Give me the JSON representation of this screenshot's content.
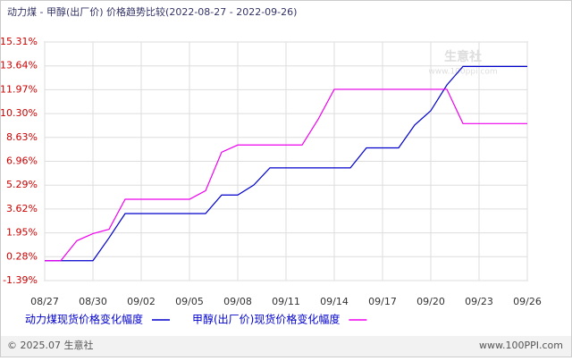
{
  "chart_data": {
    "type": "line",
    "title": "动力煤 - 甲醇(出厂价) 价格趋势比较(2022-08-27 - 2022-09-26)",
    "categories": [
      "08/27",
      null,
      null,
      "08/30",
      null,
      null,
      "09/02",
      null,
      null,
      "09/05",
      null,
      null,
      "09/08",
      null,
      null,
      "09/11",
      null,
      null,
      "09/14",
      null,
      null,
      "09/17",
      null,
      null,
      "09/20",
      null,
      null,
      "09/23",
      null,
      null,
      "09/26"
    ],
    "series": [
      {
        "name": "动力煤现货价格变化幅度",
        "color": "#0000cc",
        "values": [
          0,
          0,
          0,
          0,
          1.6,
          3.3,
          3.3,
          3.3,
          3.3,
          3.3,
          3.3,
          4.6,
          4.6,
          5.3,
          6.5,
          6.5,
          6.5,
          6.5,
          6.5,
          6.5,
          7.9,
          7.9,
          7.9,
          9.5,
          10.5,
          12.3,
          13.6,
          13.6,
          13.6,
          13.6,
          13.6
        ]
      },
      {
        "name": "甲醇(出厂价)现货价格变化幅度",
        "color": "#ee00ee",
        "values": [
          0,
          0,
          1.4,
          1.9,
          2.2,
          4.3,
          4.3,
          4.3,
          4.3,
          4.3,
          4.9,
          7.6,
          8.1,
          8.1,
          8.1,
          8.1,
          8.1,
          9.9,
          12.0,
          12.0,
          12.0,
          12.0,
          12.0,
          12.0,
          12.0,
          12.0,
          9.6,
          9.6,
          9.6,
          9.6,
          9.6
        ]
      }
    ],
    "ylim": [
      -1.39,
      15.31
    ],
    "yticks": [
      {
        "value": 15.31,
        "label": "15.31%"
      },
      {
        "value": 13.64,
        "label": "13.64%"
      },
      {
        "value": 11.97,
        "label": "11.97%"
      },
      {
        "value": 10.3,
        "label": "10.30%"
      },
      {
        "value": 8.63,
        "label": "8.63%"
      },
      {
        "value": 6.96,
        "label": "6.96%"
      },
      {
        "value": 5.29,
        "label": "5.29%"
      },
      {
        "value": 3.62,
        "label": "3.62%"
      },
      {
        "value": 1.95,
        "label": "1.95%"
      },
      {
        "value": 0.28,
        "label": "0.28%"
      },
      {
        "value": -1.39,
        "label": "-1.39%"
      }
    ],
    "grid": true,
    "watermark": "生意社",
    "watermark_url": "www.100ppi.com",
    "footer_left": "© 2025.07 生意社",
    "footer_right": "www.100PPI.com"
  }
}
